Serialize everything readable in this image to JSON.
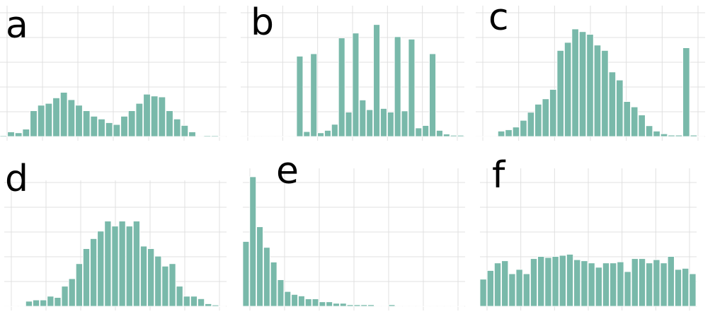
{
  "colors": {
    "bar": "#79b9aa",
    "bar_edge": "#ffffff",
    "grid": "#e0e0e0"
  },
  "chart_data": [
    {
      "type": "bar",
      "panel": "a",
      "title": "a",
      "grid": true,
      "values": [
        1,
        5,
        4,
        8,
        28,
        34,
        36,
        42,
        48,
        40,
        34,
        28,
        22,
        19,
        15,
        13,
        22,
        28,
        36,
        46,
        44,
        43,
        28,
        19,
        12,
        5,
        0,
        1,
        1,
        0
      ]
    },
    {
      "type": "bar",
      "panel": "b",
      "title": "b",
      "grid": true,
      "values": [
        0,
        0,
        0,
        0,
        0,
        0,
        0,
        0,
        66,
        4,
        68,
        3,
        5,
        10,
        81,
        20,
        85,
        30,
        22,
        92,
        23,
        20,
        82,
        21,
        80,
        7,
        9,
        68,
        5,
        2,
        1,
        1
      ]
    },
    {
      "type": "bar",
      "panel": "c",
      "title": "c",
      "grid": true,
      "values": [
        0,
        0,
        0,
        4,
        5,
        7,
        12,
        18,
        24,
        28,
        35,
        64,
        70,
        80,
        78,
        76,
        68,
        64,
        48,
        42,
        26,
        22,
        16,
        8,
        4,
        2,
        1,
        1,
        66,
        1,
        0
      ]
    },
    {
      "type": "bar",
      "panel": "d",
      "title": "d",
      "grid": true,
      "values": [
        0,
        0,
        0,
        4,
        5,
        5,
        8,
        7,
        16,
        22,
        34,
        46,
        54,
        60,
        68,
        64,
        68,
        64,
        68,
        48,
        46,
        40,
        32,
        34,
        16,
        8,
        8,
        6,
        2,
        1,
        0
      ]
    },
    {
      "type": "bar",
      "panel": "e",
      "title": "e",
      "grid": true,
      "values": [
        44,
        88,
        54,
        40,
        30,
        18,
        10,
        8,
        7,
        5,
        5,
        3,
        3,
        2,
        2,
        1,
        1,
        1,
        1,
        0,
        0,
        1,
        0,
        0,
        0,
        0,
        0,
        0,
        0,
        0,
        0,
        0
      ]
    },
    {
      "type": "bar",
      "panel": "f",
      "title": "f",
      "grid": true,
      "values": [
        25,
        33,
        40,
        42,
        30,
        34,
        30,
        44,
        46,
        45,
        46,
        47,
        48,
        43,
        42,
        40,
        36,
        40,
        40,
        41,
        32,
        44,
        44,
        40,
        43,
        40,
        46,
        34,
        35,
        30
      ]
    }
  ]
}
